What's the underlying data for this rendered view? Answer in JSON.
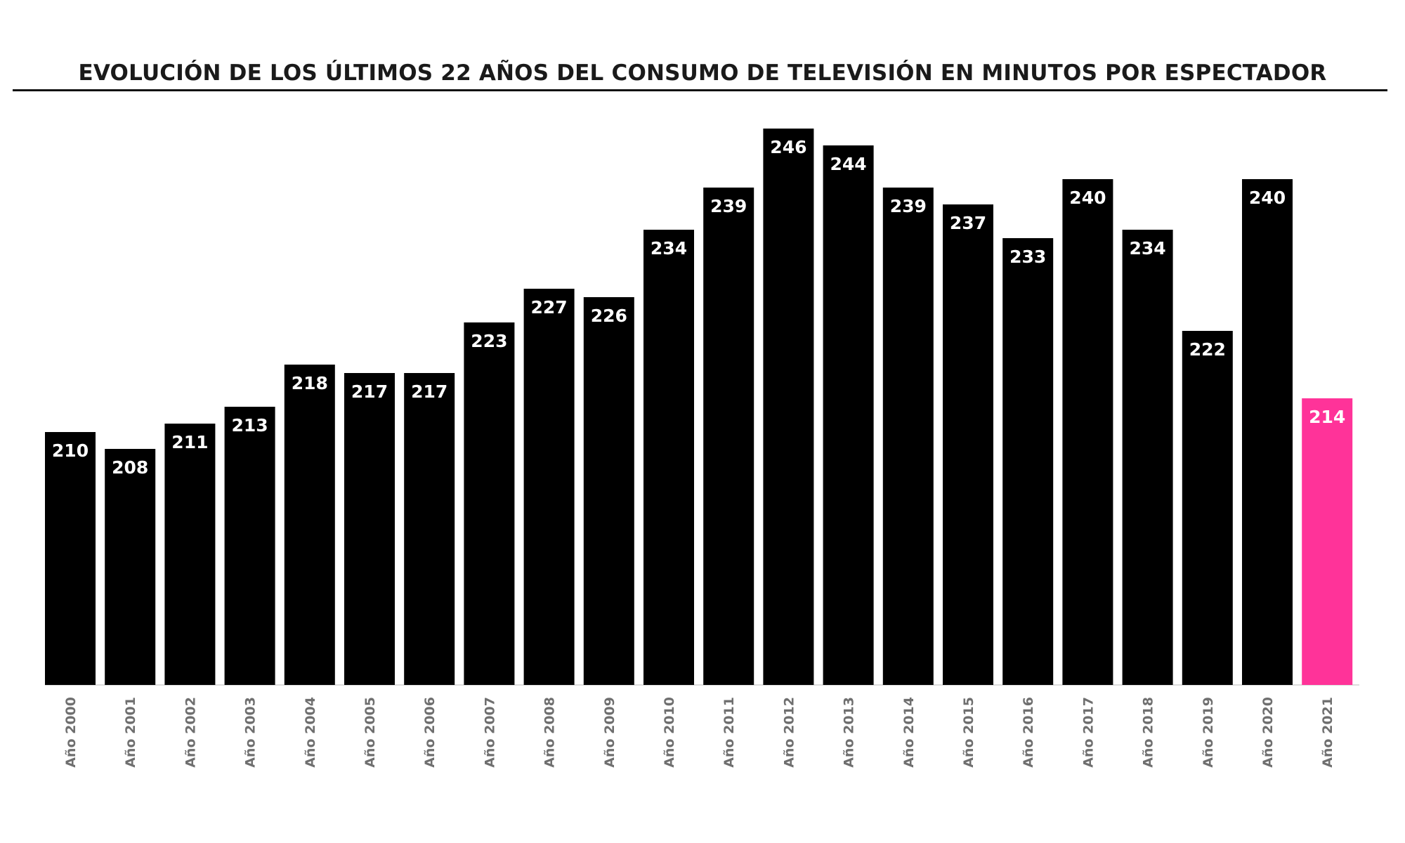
{
  "chart_data": {
    "type": "bar",
    "title": "EVOLUCIÓN DE LOS ÚLTIMOS 22 AÑOS DEL CONSUMO DE TELEVISIÓN EN MINUTOS POR ESPECTADOR",
    "xlabel": "",
    "ylabel": "",
    "categories": [
      "Año 2000",
      "Año 2001",
      "Año 2002",
      "Año 2003",
      "Año 2004",
      "Año 2005",
      "Año 2006",
      "Año 2007",
      "Año 2008",
      "Año 2009",
      "Año 2010",
      "Año 2011",
      "Año 2012",
      "Año 2013",
      "Año 2014",
      "Año 2015",
      "Año 2016",
      "Año 2017",
      "Año 2018",
      "Año 2019",
      "Año 2020",
      "Año 2021"
    ],
    "values": [
      210,
      208,
      211,
      213,
      218,
      217,
      217,
      223,
      227,
      226,
      234,
      239,
      246,
      244,
      239,
      237,
      233,
      240,
      234,
      222,
      240,
      214
    ],
    "ylim": [
      180,
      246
    ],
    "grid": false,
    "legend": "none",
    "colors": {
      "default": "#000000",
      "highlight": "#ff3399",
      "highlight_category": "Año 2021",
      "label": "#ffffff",
      "tick": "#6f6f6f"
    }
  }
}
